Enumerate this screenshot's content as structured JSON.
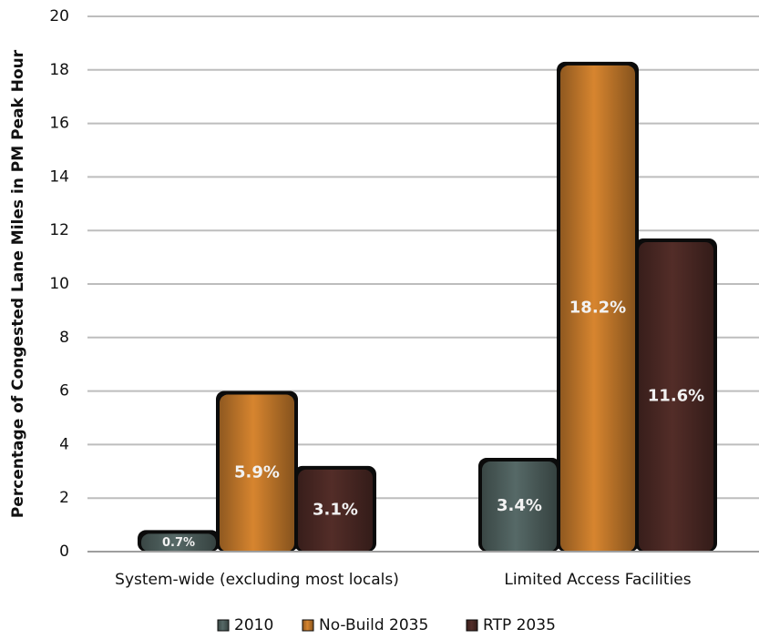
{
  "chart_data": {
    "type": "bar",
    "ylabel": "Percentage of Congested Lane Miles in PM Peak Hour",
    "ylim": [
      0,
      20
    ],
    "yticks": [
      "0",
      "2",
      "4",
      "6",
      "8",
      "10",
      "12",
      "14",
      "16",
      "18",
      "20"
    ],
    "grid": true,
    "legend_position": "bottom",
    "categories": [
      "System-wide (excluding most locals)",
      "Limited Access Facilities"
    ],
    "series": [
      {
        "name": "2010",
        "color": "#4d5e5c",
        "values": [
          0.7,
          3.4
        ],
        "labels": [
          "0.7%",
          "3.4%"
        ]
      },
      {
        "name": "No-Build 2035",
        "color": "#c0772a",
        "values": [
          5.9,
          18.2
        ],
        "labels": [
          "5.9%",
          "18.2%"
        ]
      },
      {
        "name": "RTP 2035",
        "color": "#4a2824",
        "values": [
          3.1,
          11.6
        ],
        "labels": [
          "3.1%",
          "11.6%"
        ]
      }
    ]
  }
}
